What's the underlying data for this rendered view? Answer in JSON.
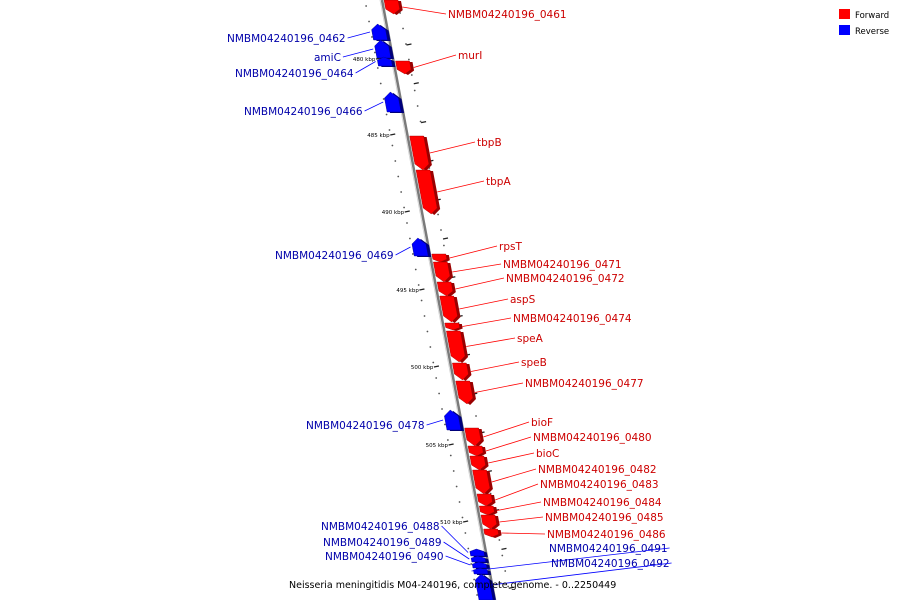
{
  "caption": "Neisseria meningitidis M04-240196, complete genome. - 0..2250449",
  "legend": [
    {
      "label": "Forward",
      "color": "#ff0000"
    },
    {
      "label": "Reverse",
      "color": "#0000ff"
    }
  ],
  "colors": {
    "forward": "#ff0000",
    "reverse": "#0000ff",
    "forward_label": "#cc0000",
    "reverse_label": "#0000aa",
    "backbone": "#808080"
  },
  "ticks": [
    "480 kbp",
    "485 kbp",
    "490 kbp",
    "495 kbp",
    "500 kbp",
    "505 kbp",
    "510 kbp"
  ],
  "genes": [
    {
      "name": "NMBM04240196_0461",
      "strand": "forward"
    },
    {
      "name": "NMBM04240196_0462",
      "strand": "reverse"
    },
    {
      "name": "amiC",
      "strand": "reverse"
    },
    {
      "name": "murI",
      "strand": "forward"
    },
    {
      "name": "NMBM04240196_0464",
      "strand": "reverse"
    },
    {
      "name": "NMBM04240196_0466",
      "strand": "reverse"
    },
    {
      "name": "tbpB",
      "strand": "forward"
    },
    {
      "name": "tbpA",
      "strand": "forward"
    },
    {
      "name": "rpsT",
      "strand": "forward"
    },
    {
      "name": "NMBM04240196_0469",
      "strand": "reverse"
    },
    {
      "name": "NMBM04240196_0471",
      "strand": "forward"
    },
    {
      "name": "NMBM04240196_0472",
      "strand": "forward"
    },
    {
      "name": "aspS",
      "strand": "forward"
    },
    {
      "name": "NMBM04240196_0474",
      "strand": "forward"
    },
    {
      "name": "speA",
      "strand": "forward"
    },
    {
      "name": "speB",
      "strand": "forward"
    },
    {
      "name": "NMBM04240196_0477",
      "strand": "forward"
    },
    {
      "name": "bioF",
      "strand": "forward"
    },
    {
      "name": "NMBM04240196_0478",
      "strand": "reverse"
    },
    {
      "name": "NMBM04240196_0480",
      "strand": "forward"
    },
    {
      "name": "bioC",
      "strand": "forward"
    },
    {
      "name": "NMBM04240196_0482",
      "strand": "forward"
    },
    {
      "name": "NMBM04240196_0483",
      "strand": "forward"
    },
    {
      "name": "NMBM04240196_0484",
      "strand": "forward"
    },
    {
      "name": "NMBM04240196_0485",
      "strand": "forward"
    },
    {
      "name": "NMBM04240196_0486",
      "strand": "forward"
    },
    {
      "name": "NMBM04240196_0488",
      "strand": "reverse"
    },
    {
      "name": "NMBM04240196_0489",
      "strand": "reverse"
    },
    {
      "name": "NMBM04240196_0490",
      "strand": "reverse"
    },
    {
      "name": "NMBM04240196_0491",
      "strand": "reverse"
    },
    {
      "name": "NMBM04240196_0492",
      "strand": "reverse"
    }
  ]
}
